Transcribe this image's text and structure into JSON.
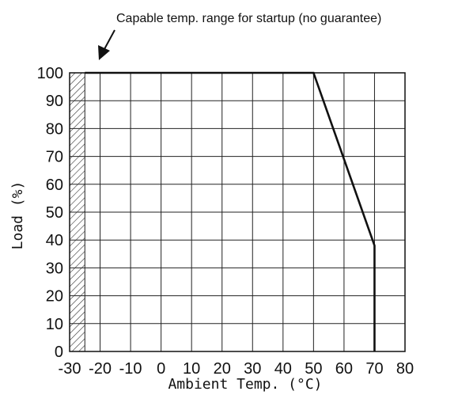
{
  "chart_data": {
    "type": "line",
    "title": "",
    "xlabel": "Ambient Temp. (°C)",
    "ylabel": "Load (%)",
    "xlim": [
      -30,
      80
    ],
    "ylim": [
      0,
      100
    ],
    "x_ticks": [
      "-30",
      "-20",
      "-10",
      "0",
      "10",
      "20",
      "30",
      "40",
      "50",
      "60",
      "70",
      "80"
    ],
    "y_ticks": [
      "0",
      "10",
      "20",
      "30",
      "40",
      "50",
      "60",
      "70",
      "80",
      "90",
      "100"
    ],
    "grid": true,
    "series": [
      {
        "points": [
          {
            "x": -25,
            "y": 100
          },
          {
            "x": 50,
            "y": 100
          },
          {
            "x": 70,
            "y": 38
          },
          {
            "x": 70,
            "y": 0
          }
        ]
      }
    ],
    "shaded_region": {
      "x_from": -30,
      "x_to": -25,
      "pattern": "hatched"
    },
    "annotation": {
      "text": "Capable temp. range for startup (no guarantee)",
      "points_to": "shaded_region"
    },
    "colors": {
      "line": "#111111",
      "grid": "#222222",
      "text": "#111111"
    }
  }
}
